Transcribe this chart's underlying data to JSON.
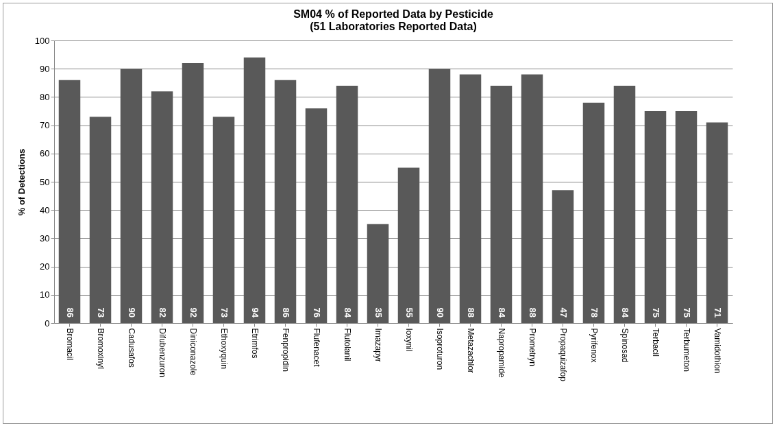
{
  "chart_data": {
    "type": "bar",
    "title": "SM04 % of Reported Data by Pesticide\n(51 Laboratories Reported Data)",
    "ylabel": "% of Detections",
    "categories": [
      "Bromacil",
      "Bromoxinyl",
      "Cadusafos",
      "Difubenzuron",
      "Diniconazole",
      "Ethoxyquin",
      "Etrimfos",
      "Fenpropidin",
      "Flufenacet",
      "Flutolanil",
      "Imazapyr",
      "Ioxynil",
      "Isoproturon",
      "Metazachlor",
      "Napropamide",
      "Prometryn",
      "Propaquizafop",
      "Pyrifenox",
      "Spinosad",
      "Terbacil",
      "Terbumeton",
      "Vamidothion"
    ],
    "values": [
      86,
      73,
      90,
      82,
      92,
      73,
      94,
      86,
      76,
      84,
      35,
      55,
      90,
      88,
      84,
      88,
      47,
      78,
      84,
      75,
      75,
      71
    ],
    "color": "#595959",
    "ylim": [
      0,
      100
    ],
    "yticks": [
      0,
      10,
      20,
      30,
      40,
      50,
      60,
      70,
      80,
      90,
      100
    ],
    "grid": "y",
    "data_labels": true
  }
}
